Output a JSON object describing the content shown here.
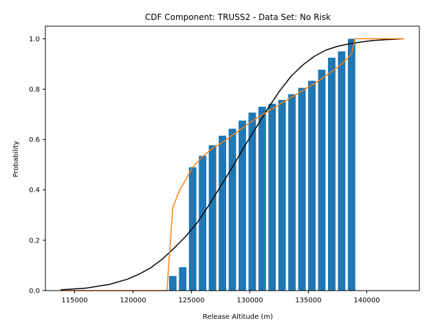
{
  "chart_data": {
    "type": "bar",
    "title": "CDF Component: TRUSS2 - Data Set: No Risk",
    "xlabel": "Release Altitude (m)",
    "ylabel": "Probability",
    "xlim": [
      112500,
      144500
    ],
    "ylim": [
      0,
      1.05
    ],
    "xticks": [
      115000,
      120000,
      125000,
      130000,
      135000,
      140000
    ],
    "yticks": [
      0.0,
      0.2,
      0.4,
      0.6,
      0.8,
      1.0
    ],
    "xtick_labels": [
      "115000",
      "120000",
      "125000",
      "130000",
      "135000",
      "140000"
    ],
    "ytick_labels": [
      "0.0",
      "0.2",
      "0.4",
      "0.6",
      "0.8",
      "1.0"
    ],
    "grid": false,
    "colors": {
      "bars": "#1f77b4",
      "normal_cdf": "#000000",
      "empirical_cdf": "#ff7f0e"
    },
    "bars": {
      "width": 640,
      "x": [
        123400,
        124250,
        125100,
        125950,
        126800,
        127650,
        128500,
        129350,
        130200,
        131050,
        131900,
        132750,
        133600,
        134450,
        135300,
        136150,
        137000,
        137850,
        138700
      ],
      "values": [
        0.058,
        0.093,
        0.49,
        0.535,
        0.577,
        0.615,
        0.643,
        0.675,
        0.707,
        0.73,
        0.742,
        0.757,
        0.78,
        0.805,
        0.833,
        0.877,
        0.925,
        0.95,
        1.0
      ]
    },
    "series": [
      {
        "x": [
          113800,
          116000,
          118000,
          119500,
          120500,
          121500,
          122500,
          123500,
          124500,
          125500,
          126500,
          127500,
          128500,
          129500,
          130500,
          131500,
          132500,
          133500,
          134500,
          135500,
          136500,
          137500,
          138500,
          139500,
          140500,
          141500,
          143200
        ],
        "y": [
          0.003,
          0.01,
          0.025,
          0.045,
          0.065,
          0.09,
          0.125,
          0.168,
          0.215,
          0.27,
          0.34,
          0.415,
          0.49,
          0.57,
          0.645,
          0.72,
          0.79,
          0.85,
          0.895,
          0.93,
          0.955,
          0.97,
          0.98,
          0.987,
          0.993,
          0.996,
          1.0
        ]
      },
      {
        "x": [
          113800,
          122900,
          123400,
          124000,
          124500,
          125100,
          125900,
          126800,
          127700,
          128600,
          129500,
          130400,
          131300,
          132200,
          133100,
          134000,
          134900,
          135800,
          136700,
          137600,
          138300,
          138700,
          139000,
          143200
        ],
        "y": [
          0.0,
          0.0,
          0.33,
          0.4,
          0.44,
          0.49,
          0.53,
          0.565,
          0.59,
          0.62,
          0.65,
          0.68,
          0.705,
          0.73,
          0.755,
          0.78,
          0.805,
          0.83,
          0.86,
          0.89,
          0.92,
          0.94,
          1.0,
          1.0
        ]
      }
    ]
  }
}
